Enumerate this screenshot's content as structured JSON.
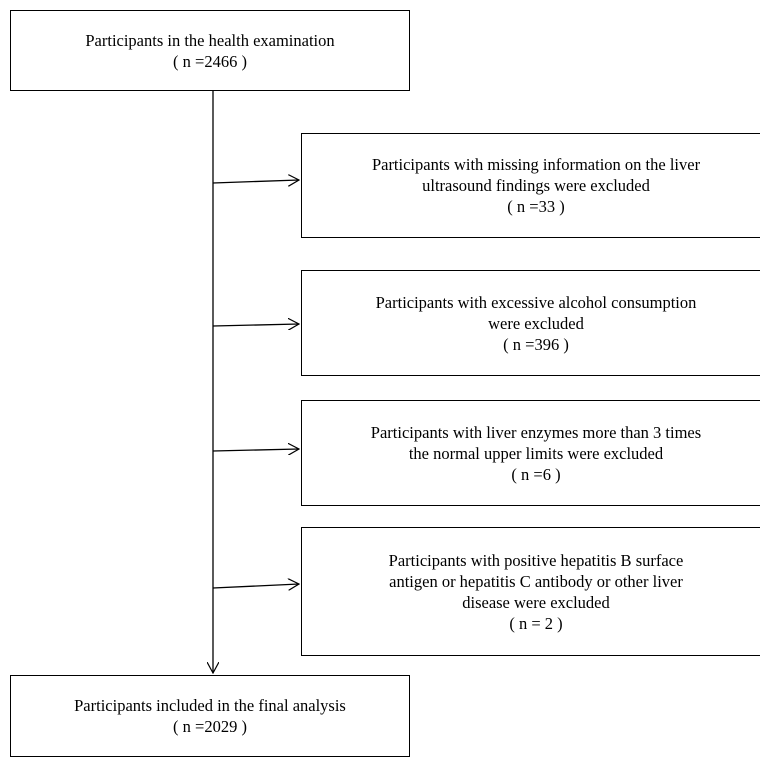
{
  "boxes": {
    "start": {
      "lines": [
        "Participants in the health examination",
        "( n =2466 )"
      ]
    },
    "exclusions": [
      {
        "lines": [
          "Participants with missing information on the liver",
          "ultrasound findings were excluded",
          "( n =33 )"
        ]
      },
      {
        "lines": [
          "Participants with excessive alcohol consumption",
          "were excluded",
          "( n =396 )"
        ]
      },
      {
        "lines": [
          "Participants with liver enzymes more than 3 times",
          "the normal upper limits were excluded",
          "( n =6 )"
        ]
      },
      {
        "lines": [
          "Participants with positive hepatitis B surface",
          "antigen or hepatitis C antibody or other liver",
          "disease were excluded",
          "( n = 2 )"
        ]
      }
    ],
    "final": {
      "lines": [
        "Participants included in the final analysis",
        "( n =2029 )"
      ]
    }
  }
}
